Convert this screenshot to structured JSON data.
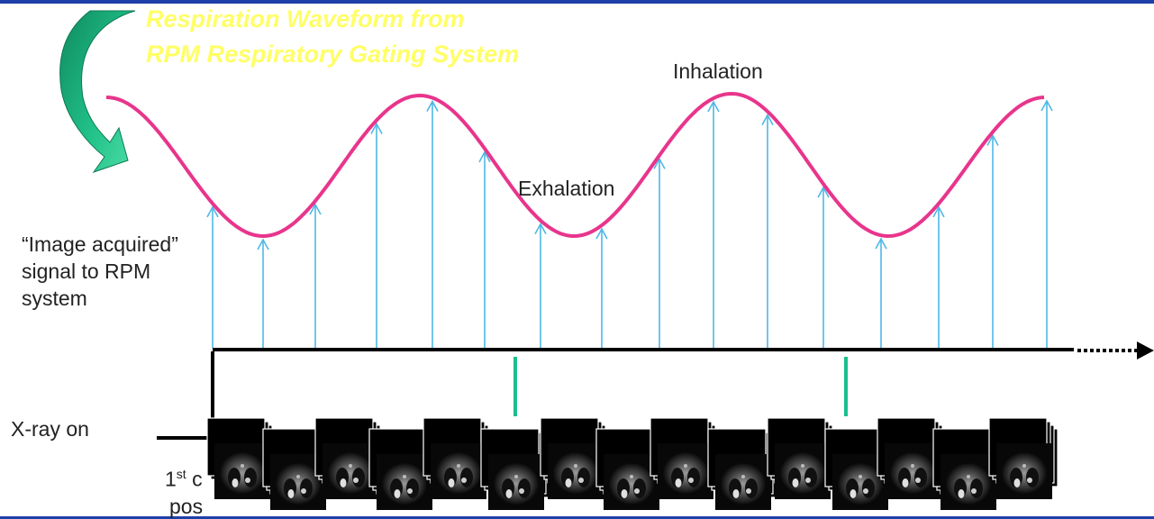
{
  "title": {
    "line1": "Respiration Waveform from",
    "line2": "RPM Respiratory Gating System"
  },
  "labels": {
    "inhalation": "Inhalation",
    "exhalation": "Exhalation",
    "image_signal": [
      "“Image acquired”",
      "signal to RPM",
      "system"
    ],
    "xray_on": "X-ray on",
    "caption_row1_prefix": "1",
    "caption_row1_sup": "st",
    "caption_row1_rest": " c",
    "caption_row2": "pos"
  },
  "colors": {
    "waveform": "#e8358c",
    "signal_arrows": "#4fb8e6",
    "gate_marks": "#1bbf8e",
    "curved_arrow": "#1aa874",
    "title_text": "#ffff66",
    "frame_bars": "#1f3fa8"
  },
  "icons": {
    "curved_arrow": "curved-arrow-icon",
    "scan_image": "ct-slice-thumbnail-icon"
  }
}
